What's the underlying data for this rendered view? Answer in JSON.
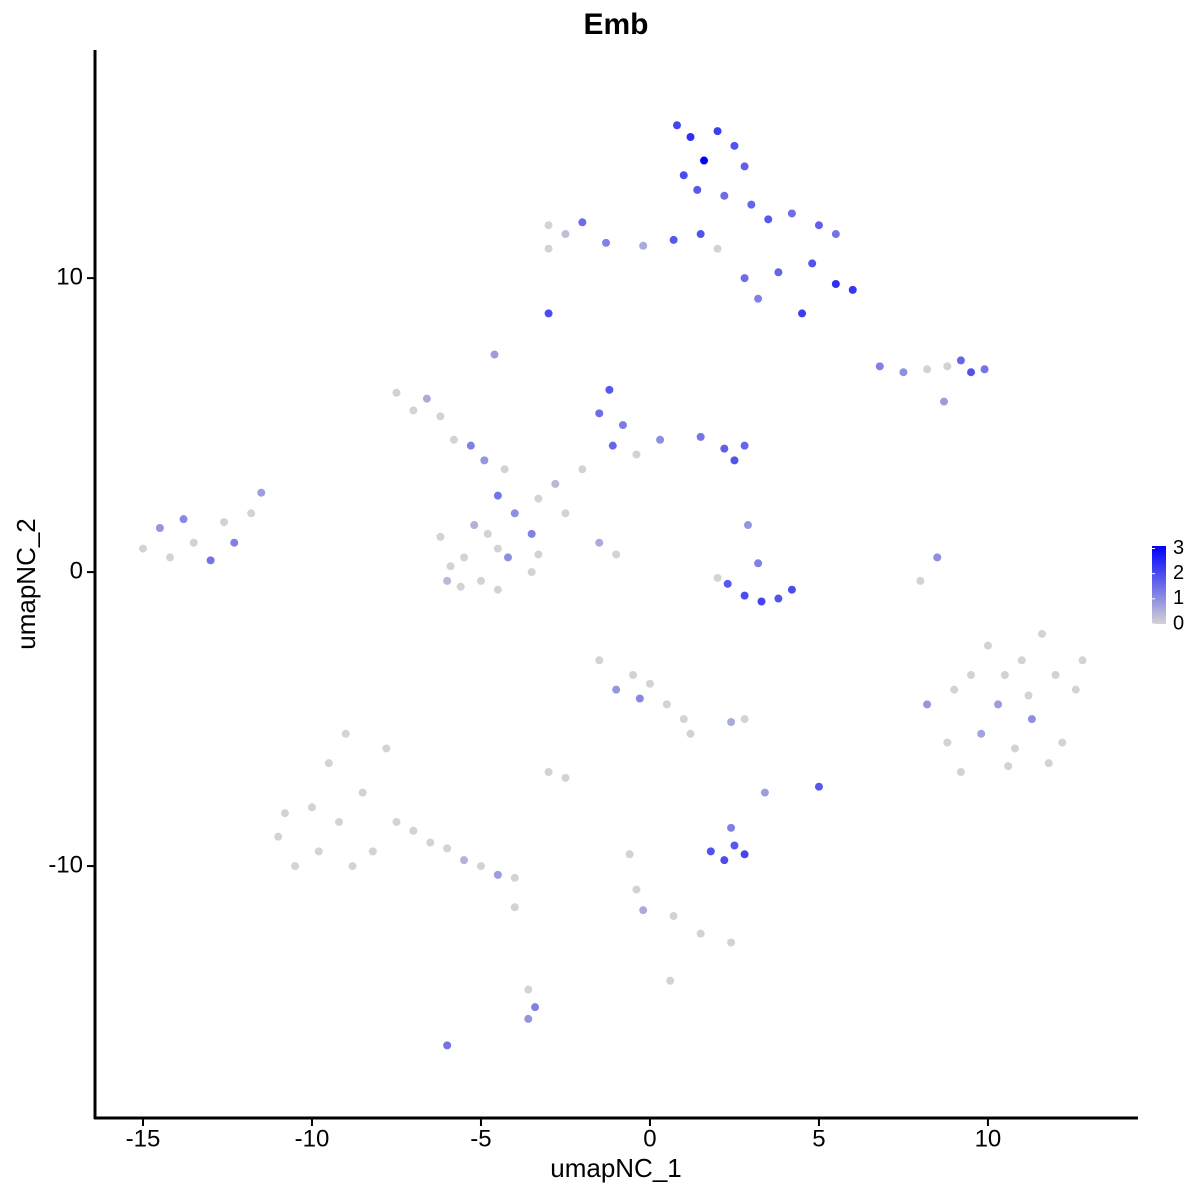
{
  "chart_data": {
    "type": "scatter",
    "title": "Emb",
    "x_label": "umapNC_1",
    "y_label": "umapNC_2",
    "xlim": [
      -16.42,
      14.44
    ],
    "ylim": [
      -18.57,
      17.76
    ],
    "xticks": [
      -15,
      -10,
      -5,
      0,
      5,
      10
    ],
    "yticks": [
      -10,
      0,
      10
    ],
    "color_low": "#d3d3d3",
    "color_high": "#0000ff",
    "colorbar_lim": [
      0,
      3.1
    ],
    "colorbar_ticks": [
      0,
      1,
      2,
      3
    ],
    "x": [
      0.8,
      1.2,
      1.6,
      2.0,
      2.5,
      1.0,
      2.8,
      1.4,
      2.2,
      3.0,
      3.5,
      4.2,
      5.0,
      5.5,
      4.8,
      5.5,
      6.0,
      4.5,
      3.8,
      3.2,
      -3.0,
      -2.5,
      -2.0,
      -1.3,
      -0.2,
      0.7,
      1.5,
      2.0,
      2.8,
      -3.0,
      -3.0,
      -4.6,
      6.8,
      7.5,
      8.2,
      8.8,
      9.2,
      9.5,
      9.9,
      8.7,
      -7.5,
      -7.0,
      -6.6,
      -6.2,
      -5.8,
      -5.3,
      -4.9,
      -4.3,
      -4.5,
      -4.0,
      -1.2,
      -1.5,
      -0.8,
      -1.1,
      -0.4,
      0.3,
      1.5,
      2.2,
      2.5,
      2.8,
      -2.0,
      -2.8,
      -3.3,
      -2.5,
      -1.5,
      -1.0,
      -3.5,
      -3.3,
      -4.5,
      -5.5,
      -15.0,
      -14.5,
      -14.2,
      -13.8,
      -13.5,
      -13.0,
      -12.6,
      -12.3,
      -11.8,
      -11.5,
      -6.2,
      -5.9,
      -5.6,
      -5.0,
      -4.5,
      -5.2,
      -6.0,
      -4.8,
      -4.2,
      -3.5,
      2.3,
      2.8,
      3.3,
      3.8,
      4.2,
      3.2,
      2.9,
      2.0,
      8.5,
      8.0,
      8.2,
      8.8,
      9.2,
      9.5,
      10.0,
      10.3,
      10.8,
      11.0,
      11.3,
      11.6,
      12.0,
      12.2,
      12.6,
      11.8,
      9.0,
      10.5,
      11.2,
      12.8,
      9.8,
      10.6,
      -11.0,
      -10.5,
      -10.0,
      -9.5,
      -9.0,
      -8.5,
      -8.2,
      -7.8,
      -7.5,
      -10.8,
      -7.0,
      -6.5,
      -6.0,
      -5.5,
      -5.0,
      -4.5,
      -4.0,
      -9.8,
      -9.2,
      -8.8,
      -1.5,
      -1.0,
      -0.5,
      0.0,
      0.5,
      1.0,
      -0.3,
      1.2,
      -3.0,
      -2.5,
      1.8,
      2.2,
      2.5,
      2.8,
      2.4,
      5.0,
      3.4,
      2.8,
      2.4,
      -4.0,
      -0.6,
      -0.4,
      -0.2,
      0.7,
      1.5,
      2.4,
      0.6,
      -3.6,
      -3.4,
      -3.6,
      -6.0
    ],
    "values": [
      15.2,
      14.8,
      14.0,
      15.0,
      14.5,
      13.5,
      13.8,
      13.0,
      12.8,
      12.5,
      12.0,
      12.2,
      11.8,
      11.5,
      10.5,
      9.8,
      9.6,
      8.8,
      10.2,
      9.3,
      11.8,
      11.5,
      11.9,
      11.2,
      11.1,
      11.3,
      11.5,
      11.0,
      10.0,
      11.0,
      8.8,
      7.4,
      7.0,
      6.8,
      6.9,
      7.0,
      7.2,
      6.8,
      6.9,
      5.8,
      6.1,
      5.5,
      5.9,
      5.3,
      4.5,
      4.3,
      3.8,
      3.5,
      2.6,
      2.0,
      6.2,
      5.4,
      5.0,
      4.3,
      4.0,
      4.5,
      4.6,
      4.2,
      3.8,
      4.3,
      3.5,
      3.0,
      2.5,
      2.0,
      1.0,
      0.6,
      1.3,
      0.6,
      0.8,
      0.5,
      0.8,
      1.5,
      0.5,
      1.8,
      1.0,
      0.4,
      1.7,
      1.0,
      2.0,
      2.7,
      1.2,
      0.2,
      -0.5,
      -0.3,
      -0.6,
      1.6,
      -0.3,
      1.3,
      0.5,
      0.0,
      -0.4,
      -0.8,
      -1.0,
      -0.9,
      -0.6,
      0.3,
      1.6,
      -0.2,
      0.5,
      -0.3,
      -4.5,
      -5.8,
      -6.8,
      -3.5,
      -2.5,
      -4.5,
      -6.0,
      -3.0,
      -5.0,
      -2.1,
      -3.5,
      -5.8,
      -4.0,
      -6.5,
      -4.0,
      -3.5,
      -4.2,
      -3.0,
      -5.5,
      -6.6,
      -9.0,
      -10.0,
      -8.0,
      -6.5,
      -5.5,
      -7.5,
      -9.5,
      -6.0,
      -8.5,
      -8.2,
      -8.8,
      -9.2,
      -9.4,
      -9.8,
      -10.0,
      -10.3,
      -10.4,
      -9.5,
      -8.5,
      -10.0,
      -3.0,
      -4.0,
      -3.5,
      -3.8,
      -4.5,
      -5.0,
      -4.3,
      -5.5,
      -6.8,
      -7.0,
      -9.5,
      -9.8,
      -9.3,
      -9.6,
      -8.7,
      -7.3,
      -7.5,
      -5.0,
      -5.1,
      -11.4,
      -9.6,
      -10.8,
      -11.5,
      -11.7,
      -12.3,
      -12.6,
      -13.9,
      -14.2,
      -14.8,
      -15.2,
      -16.1
    ],
    "expression": [
      2.1,
      2.4,
      3.1,
      2.2,
      1.9,
      2.0,
      1.7,
      1.8,
      1.5,
      1.6,
      1.8,
      1.5,
      1.7,
      1.4,
      1.9,
      2.4,
      2.3,
      2.2,
      1.6,
      1.2,
      0,
      0.3,
      1.5,
      1.2,
      0.6,
      1.8,
      1.9,
      0,
      1.5,
      0,
      2.0,
      0.8,
      1.2,
      1.0,
      0,
      0,
      1.6,
      1.9,
      1.4,
      0.8,
      0,
      0,
      0.6,
      0,
      0,
      1.2,
      0.9,
      0,
      1.4,
      1.0,
      1.8,
      1.5,
      1.3,
      1.6,
      0,
      1.0,
      1.4,
      1.7,
      1.9,
      1.6,
      0,
      0.4,
      0,
      0,
      0.6,
      0,
      1.2,
      0,
      0,
      0,
      0,
      0.9,
      0,
      1.1,
      0,
      1.4,
      0,
      1.2,
      0,
      0.8,
      0,
      0,
      0,
      0,
      0,
      0.5,
      0.4,
      0,
      1.0,
      0,
      1.8,
      2.0,
      2.1,
      1.9,
      2.0,
      1.2,
      0.9,
      0,
      1.0,
      0,
      0.9,
      0,
      0,
      0,
      0,
      0.8,
      0,
      0,
      1.0,
      0,
      0,
      0,
      0,
      0,
      0,
      0,
      0,
      0,
      0.7,
      0,
      0,
      0,
      0,
      0,
      0,
      0,
      0,
      0,
      0,
      0,
      0,
      0,
      0,
      0.5,
      0,
      0.8,
      0,
      0,
      0,
      0,
      0,
      0.9,
      0,
      0,
      0,
      0,
      1.1,
      0,
      0,
      0,
      1.9,
      2.0,
      1.8,
      2.1,
      1.2,
      1.8,
      0.8,
      0,
      0.6,
      0,
      0,
      0,
      0.6,
      0,
      0,
      0,
      0,
      0,
      1.2,
      0.9,
      1.4
    ]
  }
}
